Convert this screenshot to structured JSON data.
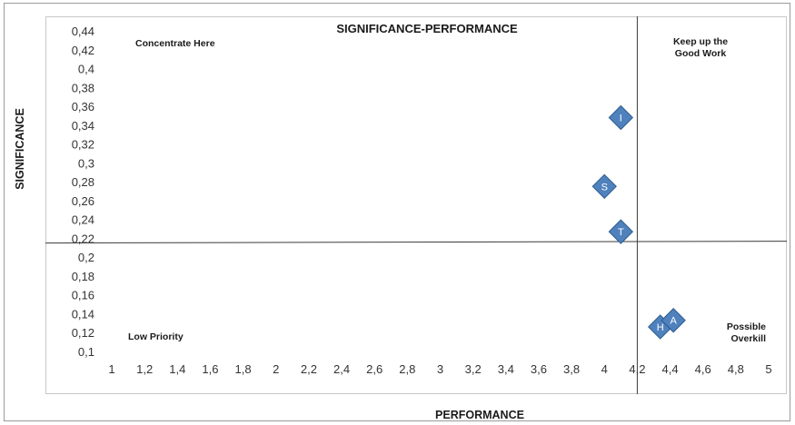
{
  "chart_data": {
    "type": "scatter",
    "title": "SIGNIFICANCE-PERFORMANCE",
    "xlabel": "PERFORMANCE",
    "ylabel": "SIGNIFICANCE",
    "xlim": [
      1,
      5
    ],
    "ylim": [
      0.1,
      0.44
    ],
    "xticks": [
      "1",
      "1,2",
      "1,4",
      "1,6",
      "1,8",
      "2",
      "2,2",
      "2,4",
      "2,6",
      "2,8",
      "3",
      "3,2",
      "3,4",
      "3,6",
      "3,8",
      "4",
      "4,2",
      "4,4",
      "4,6",
      "4,8",
      "5"
    ],
    "yticks": [
      "0,1",
      "0,12",
      "0,14",
      "0,16",
      "0,18",
      "0,2",
      "0,22",
      "0,24",
      "0,26",
      "0,28",
      "0,3",
      "0,32",
      "0,34",
      "0,36",
      "0,38",
      "0,4",
      "0,42",
      "0,44"
    ],
    "grid": false,
    "reference_lines": {
      "x": 4.2,
      "y": 0.215
    },
    "marker_color": "#4f81bd",
    "points": [
      {
        "label": "I",
        "x": 4.1,
        "y": 0.348
      },
      {
        "label": "S",
        "x": 4.0,
        "y": 0.275
      },
      {
        "label": "T",
        "x": 4.1,
        "y": 0.227
      },
      {
        "label": "H",
        "x": 4.34,
        "y": 0.126
      },
      {
        "label": "A",
        "x": 4.42,
        "y": 0.133
      }
    ],
    "annotations": [
      {
        "id": "concentrate-here",
        "lines": [
          "Concentrate Here"
        ]
      },
      {
        "id": "keep-up",
        "lines": [
          "Keep up the",
          "Good Work"
        ]
      },
      {
        "id": "low-priority",
        "lines": [
          "Low Priority"
        ]
      },
      {
        "id": "possible-overkill",
        "lines": [
          "Possible",
          "Overkill"
        ]
      }
    ]
  }
}
